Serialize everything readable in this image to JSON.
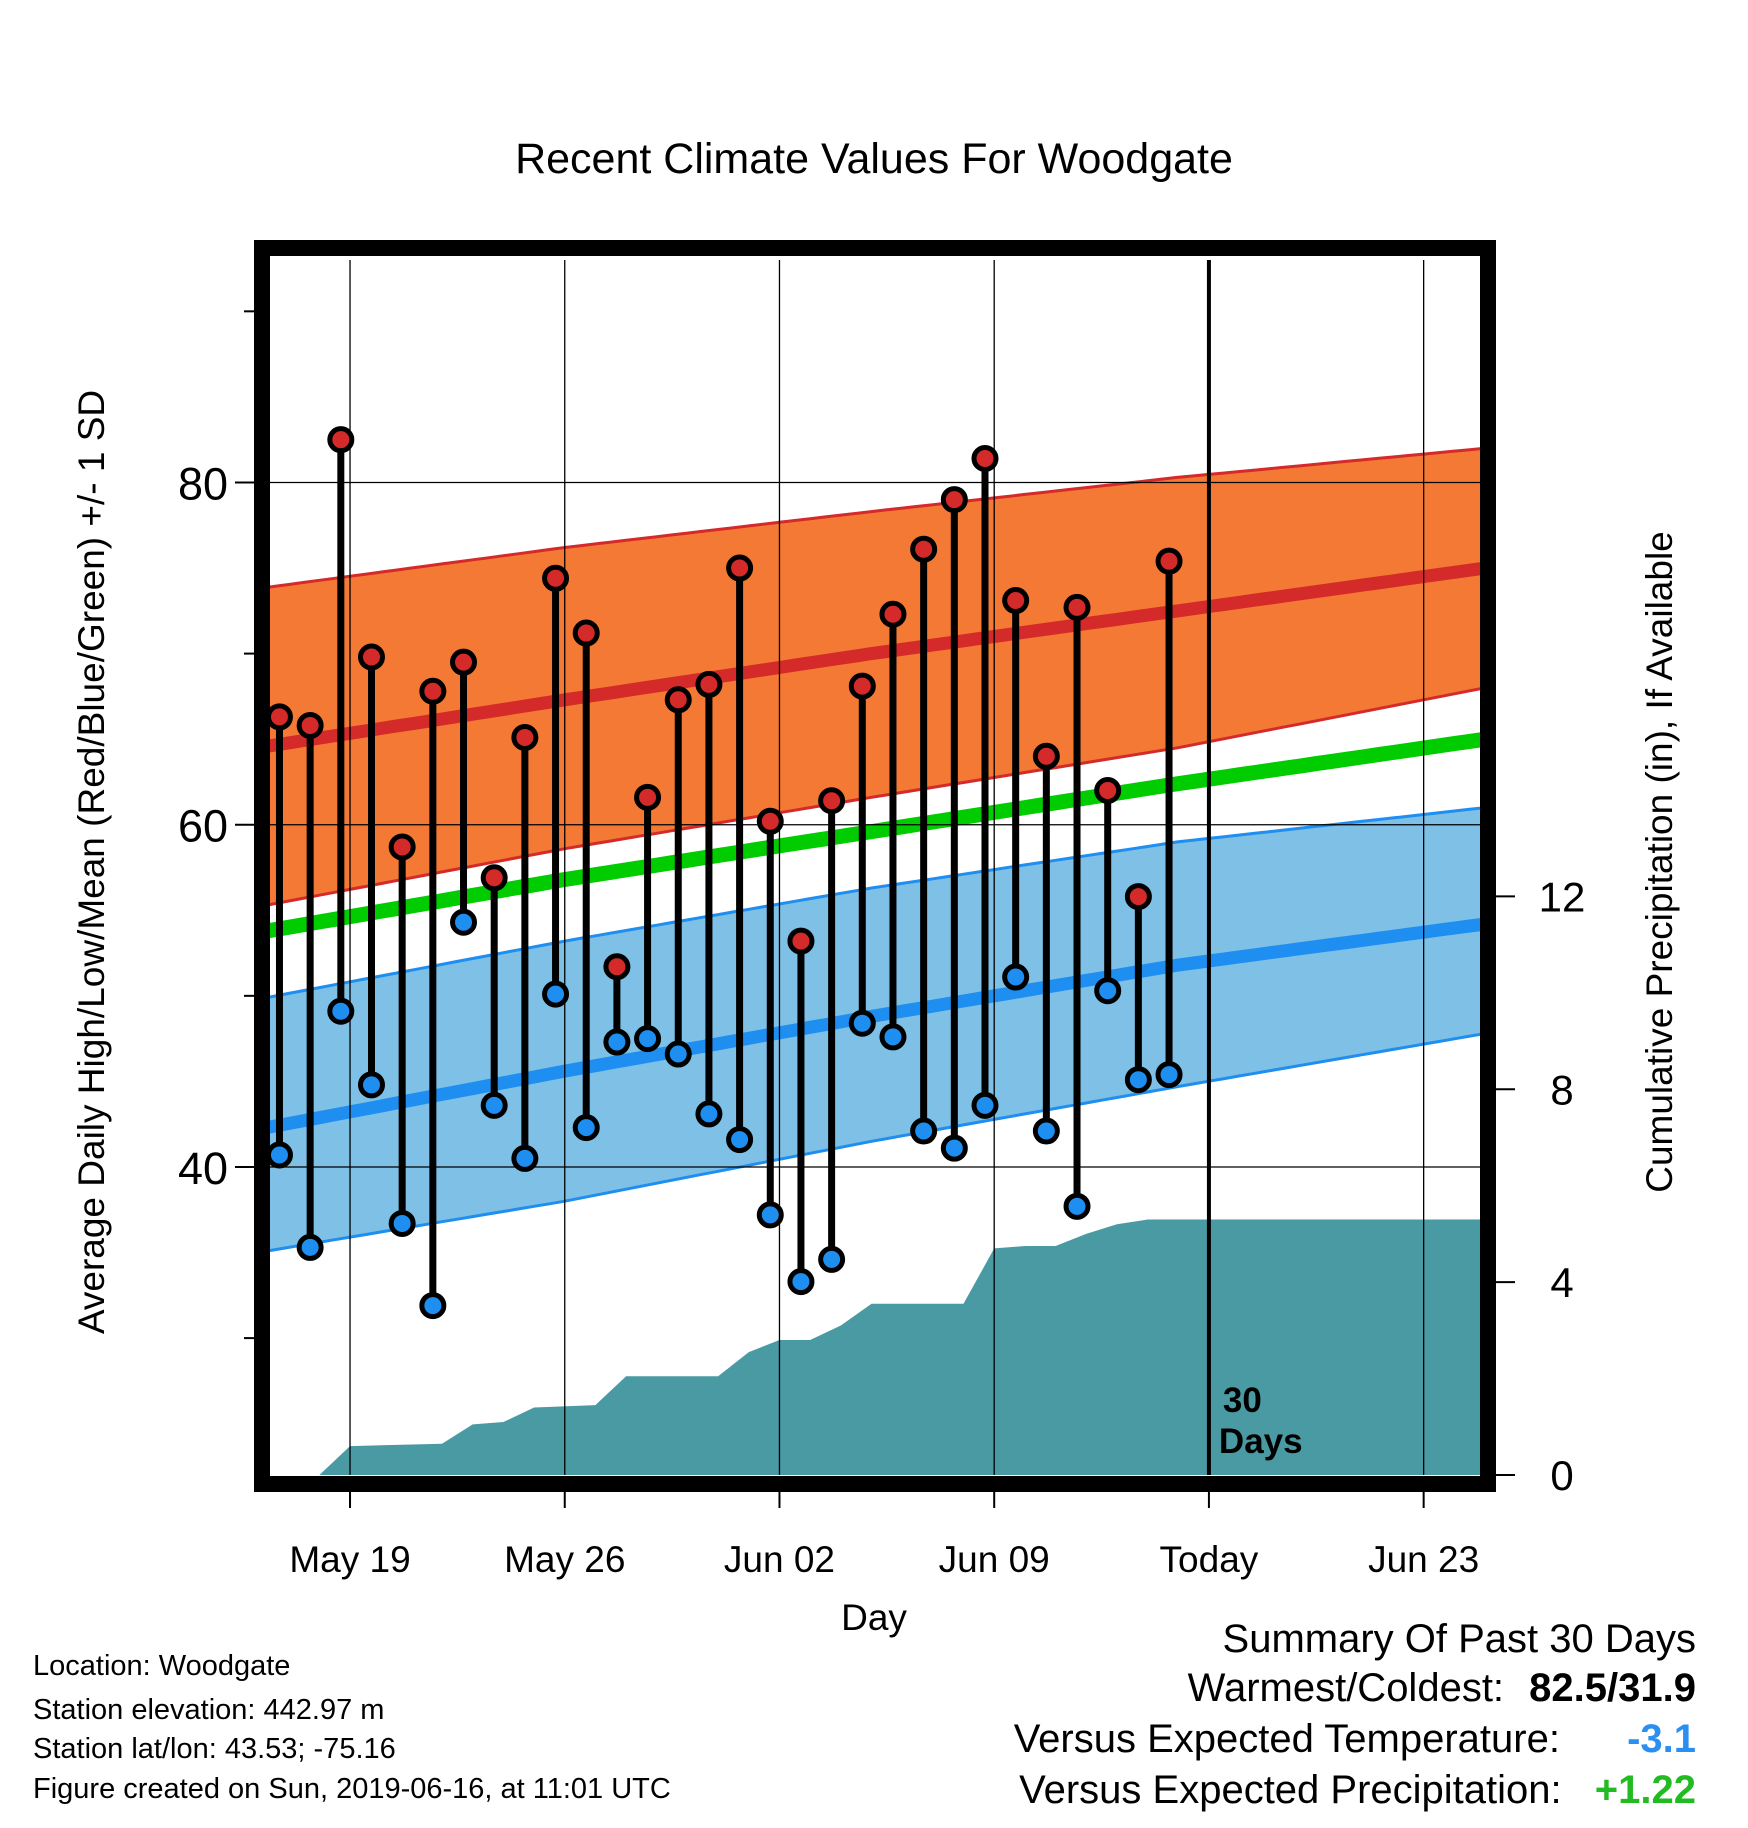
{
  "chart_data": {
    "type": "line",
    "title": "Recent Climate Values For Woodgate",
    "xlabel": "Day",
    "ylabel_left": "Average Daily High/Low/Mean (Red/Blue/Green) +/- 1 SD",
    "ylabel_right": "Cumulative Precipitation (in), If Available",
    "x_tick_labels": [
      "May 19",
      "May 26",
      "Jun 02",
      "Jun 09",
      "Today",
      "Jun 23"
    ],
    "x_tick_days": [
      3,
      10,
      17,
      24,
      31,
      38
    ],
    "xlim_days": [
      0,
      40
    ],
    "today_day": 31,
    "today_note": "30 Days",
    "ylim_temp": [
      22,
      93
    ],
    "y_ticks_temp": [
      40,
      60,
      80
    ],
    "ylim_precip": [
      0,
      25.2
    ],
    "y_ticks_precip": [
      0,
      4,
      8,
      12
    ],
    "grid": true,
    "normal_high": {
      "day": [
        0,
        10,
        20,
        30,
        40
      ],
      "mean": [
        64.5,
        67.3,
        70.0,
        72.5,
        75.0
      ],
      "upper": [
        73.8,
        76.2,
        78.3,
        80.3,
        82.0
      ],
      "lower": [
        55.2,
        58.6,
        61.6,
        64.5,
        68.0
      ],
      "color": "#d42a2a",
      "band_color": "#f47934"
    },
    "normal_mean": {
      "day": [
        0,
        10,
        20,
        30,
        40
      ],
      "values": [
        53.7,
        56.8,
        59.6,
        62.4,
        65.0
      ],
      "color": "#00cc00"
    },
    "normal_low": {
      "day": [
        0,
        10,
        20,
        30,
        40
      ],
      "mean": [
        42.2,
        45.6,
        48.8,
        51.8,
        54.2
      ],
      "upper": [
        49.8,
        53.2,
        56.3,
        59.0,
        61.0
      ],
      "lower": [
        35.0,
        38.0,
        41.5,
        44.7,
        47.8
      ],
      "color": "#1e8ff0",
      "band_color": "#7fc0e6"
    },
    "daily": [
      {
        "day": 0.7,
        "high": 66.3,
        "low": 40.7
      },
      {
        "day": 1.7,
        "high": 65.8,
        "low": 35.3
      },
      {
        "day": 2.7,
        "high": 82.5,
        "low": 49.1
      },
      {
        "day": 3.7,
        "high": 69.8,
        "low": 44.8
      },
      {
        "day": 4.7,
        "high": 58.7,
        "low": 36.7
      },
      {
        "day": 5.7,
        "high": 67.8,
        "low": 31.9
      },
      {
        "day": 6.7,
        "high": 69.5,
        "low": 54.3
      },
      {
        "day": 7.7,
        "high": 56.9,
        "low": 43.6
      },
      {
        "day": 8.7,
        "high": 65.1,
        "low": 40.5
      },
      {
        "day": 9.7,
        "high": 74.4,
        "low": 50.1
      },
      {
        "day": 10.7,
        "high": 71.2,
        "low": 42.3
      },
      {
        "day": 11.7,
        "high": 51.7,
        "low": 47.3
      },
      {
        "day": 12.7,
        "high": 61.6,
        "low": 47.5
      },
      {
        "day": 13.7,
        "high": 67.3,
        "low": 46.6
      },
      {
        "day": 14.7,
        "high": 68.2,
        "low": 43.1
      },
      {
        "day": 15.7,
        "high": 75.0,
        "low": 41.6
      },
      {
        "day": 16.7,
        "high": 60.2,
        "low": 37.2
      },
      {
        "day": 17.7,
        "high": 53.2,
        "low": 33.3
      },
      {
        "day": 18.7,
        "high": 61.4,
        "low": 34.6
      },
      {
        "day": 19.7,
        "high": 68.1,
        "low": 48.4
      },
      {
        "day": 20.7,
        "high": 72.3,
        "low": 47.6
      },
      {
        "day": 21.7,
        "high": 76.1,
        "low": 42.1
      },
      {
        "day": 22.7,
        "high": 79.0,
        "low": 41.1
      },
      {
        "day": 23.7,
        "high": 81.4,
        "low": 43.6
      },
      {
        "day": 24.7,
        "high": 73.1,
        "low": 51.1
      },
      {
        "day": 25.7,
        "high": 64.0,
        "low": 42.1
      },
      {
        "day": 26.7,
        "high": 72.7,
        "low": 37.7
      },
      {
        "day": 27.7,
        "high": 62.0,
        "low": 50.3
      },
      {
        "day": 28.7,
        "high": 55.8,
        "low": 45.1
      },
      {
        "day": 29.7,
        "high": 75.4,
        "low": 45.4
      }
    ],
    "precip": {
      "day": [
        0,
        2,
        3,
        6,
        7,
        8,
        9,
        11,
        12,
        15,
        16,
        17,
        18,
        19,
        20,
        21,
        23,
        24,
        25,
        26,
        27,
        28,
        29,
        31,
        40
      ],
      "values": [
        0,
        0,
        0.6,
        0.65,
        1.05,
        1.1,
        1.4,
        1.45,
        2.05,
        2.05,
        2.55,
        2.8,
        2.8,
        3.1,
        3.55,
        3.55,
        3.55,
        4.7,
        4.75,
        4.75,
        5.0,
        5.2,
        5.3,
        5.3,
        5.3
      ],
      "color": "#4a9aa4"
    },
    "colors": {
      "high_dot": "#d42a2a",
      "low_dot": "#1e8ff0"
    }
  },
  "summary": {
    "heading": "Summary Of Past 30 Days",
    "warm_cold_label": "Warmest/Coldest:",
    "warm_cold_value": "82.5/31.9",
    "temp_label": "Versus Expected Temperature:",
    "temp_value": "-3.1",
    "temp_color": "#2a8ff0",
    "precip_label": "Versus Expected Precipitation:",
    "precip_value": "+1.22",
    "precip_color": "#22bb22"
  },
  "station": {
    "location": "Location: Woodgate",
    "elevation": "Station elevation: 442.97 m",
    "latlon": "Station lat/lon: 43.53; -75.16",
    "created": "Figure created on Sun, 2019-06-16, at 11:01 UTC"
  }
}
